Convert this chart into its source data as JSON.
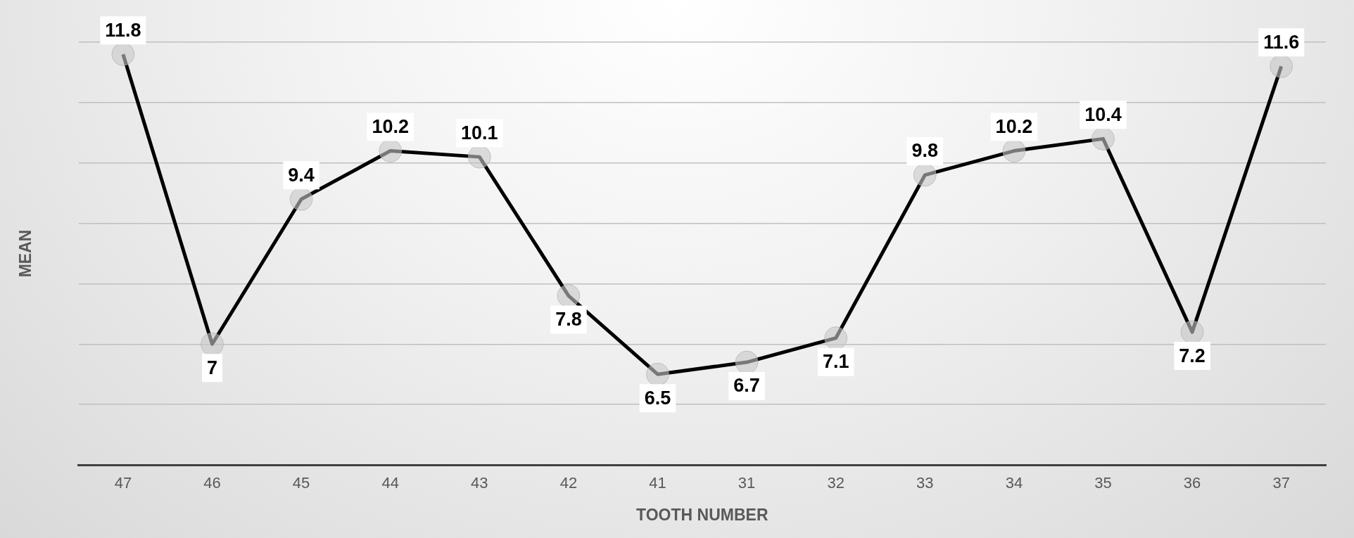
{
  "chart_data": {
    "type": "line",
    "xlabel": "TOOTH NUMBER",
    "ylabel": "MEAN",
    "categories": [
      "47",
      "46",
      "45",
      "44",
      "43",
      "42",
      "41",
      "31",
      "32",
      "33",
      "34",
      "35",
      "36",
      "37"
    ],
    "series": [
      {
        "color": "#000000",
        "values": [
          11.8,
          7,
          9.4,
          10.2,
          10.1,
          7.8,
          6.5,
          6.7,
          7.1,
          9.8,
          10.2,
          10.4,
          7.2,
          11.6
        ]
      }
    ],
    "ylim": [
      5,
      12
    ],
    "yticks": [
      {
        "value": 5,
        "label": null
      },
      {
        "value": 6,
        "label": null
      },
      {
        "value": 7,
        "label": null
      },
      {
        "value": 8,
        "label": null
      },
      {
        "value": 9,
        "label": null
      },
      {
        "value": 10,
        "label": null
      },
      {
        "value": 11,
        "label": null
      },
      {
        "value": 12,
        "label": null
      }
    ],
    "tick_labels": "x",
    "grid": "y",
    "marker": "circle",
    "line_style": "solid",
    "data_labels": true,
    "legend": false
  }
}
